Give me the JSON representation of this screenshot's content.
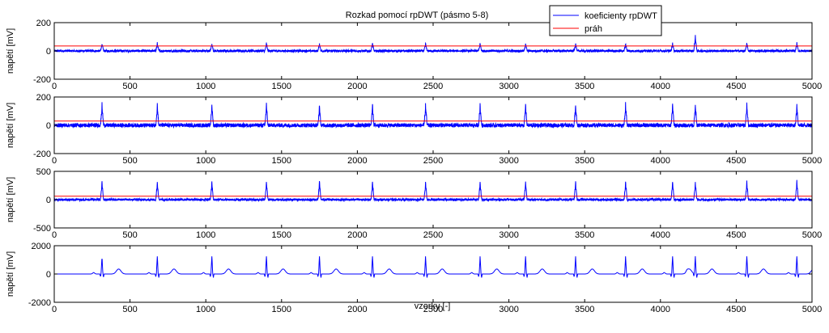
{
  "figure": {
    "title": "Rozkad pomocí rpDWT (pásmo 5-8)",
    "xlabel": "vzorky [-]",
    "legend": [
      {
        "name": "koeficienty rpDWT",
        "color": "#0000ff"
      },
      {
        "name": "práh",
        "color": "#ff0000"
      }
    ]
  },
  "chart_data": [
    {
      "type": "line",
      "ylabel": "napětí [mV]",
      "xlim": [
        0,
        5000
      ],
      "ylim": [
        -200,
        200
      ],
      "xticks": [
        0,
        500,
        1000,
        1500,
        2000,
        2500,
        3000,
        3500,
        4000,
        4500,
        5000
      ],
      "yticks": [
        -200,
        0,
        200
      ],
      "grid": false,
      "legend_position": "top-right",
      "series": [
        {
          "name": "koeficienty rpDWT",
          "color": "#0000ff",
          "beat_positions": [
            315,
            680,
            1040,
            1400,
            1750,
            2100,
            2450,
            2810,
            3110,
            3440,
            3770,
            4080,
            4230,
            4570,
            4900
          ],
          "peak_amplitudes": [
            55,
            55,
            55,
            55,
            55,
            55,
            55,
            55,
            55,
            55,
            55,
            55,
            110,
            55,
            55
          ],
          "noise_level": 8
        },
        {
          "name": "práh",
          "color": "#ff0000",
          "constant": 35
        }
      ]
    },
    {
      "type": "line",
      "ylabel": "napětí [mV]",
      "xlim": [
        0,
        5000
      ],
      "ylim": [
        -200,
        200
      ],
      "xticks": [
        0,
        500,
        1000,
        1500,
        2000,
        2500,
        3000,
        3500,
        4000,
        4500,
        5000
      ],
      "yticks": [
        -200,
        0,
        200
      ],
      "grid": false,
      "series": [
        {
          "name": "koeficienty rpDWT",
          "color": "#0000ff",
          "beat_positions": [
            315,
            680,
            1040,
            1400,
            1750,
            2100,
            2450,
            2810,
            3110,
            3440,
            3770,
            4080,
            4230,
            4570,
            4900
          ],
          "peak_amplitudes": [
            150,
            150,
            150,
            150,
            150,
            150,
            150,
            150,
            150,
            150,
            150,
            150,
            150,
            150,
            150
          ],
          "noise_level": 14
        },
        {
          "name": "práh",
          "color": "#ff0000",
          "constant": 30
        }
      ]
    },
    {
      "type": "line",
      "ylabel": "napětí [mV]",
      "xlim": [
        0,
        5000
      ],
      "ylim": [
        -500,
        500
      ],
      "xticks": [
        0,
        500,
        1000,
        1500,
        2000,
        2500,
        3000,
        3500,
        4000,
        4500,
        5000
      ],
      "yticks": [
        -500,
        0,
        500
      ],
      "grid": false,
      "series": [
        {
          "name": "koeficienty rpDWT",
          "color": "#0000ff",
          "beat_positions": [
            315,
            680,
            1040,
            1400,
            1750,
            2100,
            2450,
            2810,
            3110,
            3440,
            3770,
            4080,
            4230,
            4570,
            4900
          ],
          "peak_amplitudes": [
            330,
            330,
            330,
            330,
            330,
            330,
            330,
            330,
            330,
            330,
            330,
            330,
            330,
            330,
            330
          ],
          "noise_level": 20
        },
        {
          "name": "práh",
          "color": "#ff0000",
          "constant": 60
        }
      ]
    },
    {
      "type": "line",
      "ylabel": "napětí [mV]",
      "xlim": [
        0,
        5000
      ],
      "ylim": [
        -2000,
        2000
      ],
      "xticks": [
        0,
        500,
        1000,
        1500,
        2000,
        2500,
        3000,
        3500,
        4000,
        4500,
        5000
      ],
      "yticks": [
        -2000,
        0,
        2000
      ],
      "grid": false,
      "series": [
        {
          "name": "koeficienty rpDWT",
          "color": "#0000ff",
          "beat_positions": [
            315,
            680,
            1040,
            1400,
            1750,
            2100,
            2450,
            2810,
            3110,
            3440,
            3770,
            4080,
            4230,
            4570,
            4900
          ],
          "peak_amplitudes": [
            1250,
            1250,
            1250,
            1250,
            1250,
            1250,
            1250,
            1250,
            1250,
            1250,
            1250,
            1250,
            1250,
            1250,
            1250
          ],
          "noise_level": 0
        }
      ]
    }
  ]
}
